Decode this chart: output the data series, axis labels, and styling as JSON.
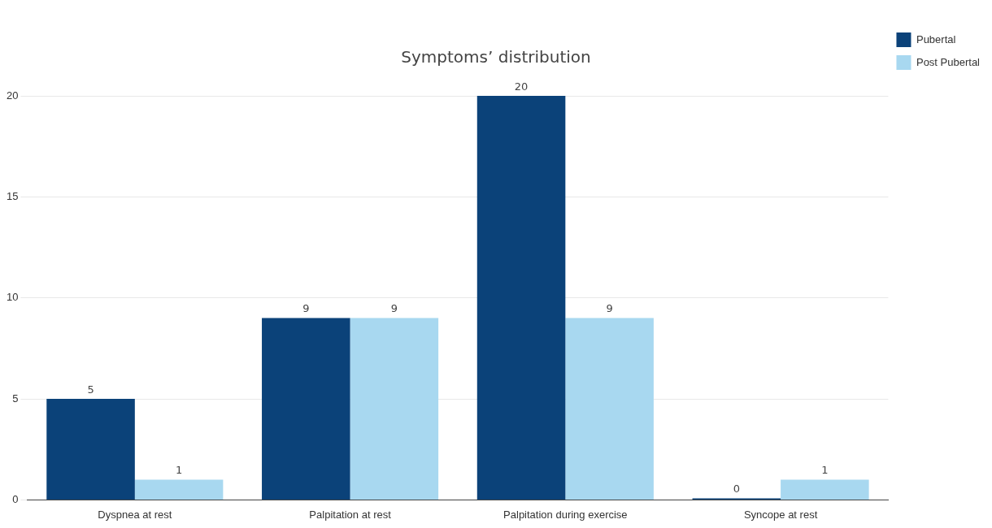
{
  "chart_data": {
    "type": "bar",
    "title": "Symptoms’ distribution",
    "categories": [
      "Dyspnea at rest",
      "Palpitation at rest",
      "Palpitation during exercise",
      "Syncope at rest"
    ],
    "series": [
      {
        "name": "Pubertal",
        "color": "#0b4279",
        "values": [
          5,
          9,
          20,
          0
        ]
      },
      {
        "name": "Post Pubertal",
        "color": "#a8d8f0",
        "values": [
          1,
          9,
          9,
          1
        ]
      }
    ],
    "ylim": [
      0,
      20
    ],
    "yticks": [
      0,
      5,
      10,
      15,
      20
    ],
    "grid": "y",
    "legend": "top right",
    "data_labels": true
  }
}
